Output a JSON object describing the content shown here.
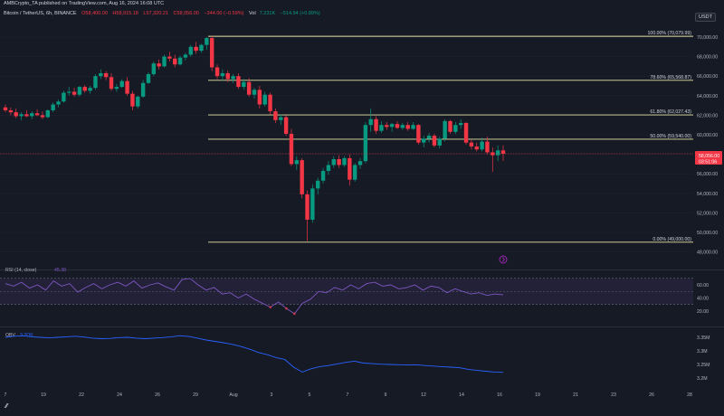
{
  "header": {
    "published": "AMBCrypto_TA published on TradingView.com, Aug 16, 2024 16:08 UTC",
    "symbol": "Bitcoin / TetherUS, 6h, BINANCE",
    "open": "O58,400.00",
    "high": "H58,915.18",
    "low": "L57,320.21",
    "close": "C58,056.00",
    "change": "−344.00 (−0.59%)",
    "volume_label": "Vol",
    "volume": "7.231K",
    "volume_change": "−514.94 (+0.89%)",
    "currency": "USDT"
  },
  "price_axis": {
    "ticks": [
      "70,000.00",
      "68,000.00",
      "66,000.00",
      "64,000.00",
      "62,000.00",
      "60,000.00",
      "58,000.00",
      "56,000.00",
      "54,000.00",
      "52,000.00",
      "50,000.00",
      "48,000.00"
    ],
    "last_price": "58,056.00",
    "countdown": "03:51:06"
  },
  "fib_levels": [
    {
      "label": "100.00% (70,079.99)",
      "price": 70079.99
    },
    {
      "label": "78.60% (65,568.87)",
      "price": 65568.87
    },
    {
      "label": "61.80% (62,027.43)",
      "price": 62027.43
    },
    {
      "label": "50.00% (59,540.00)",
      "price": 59540.0
    },
    {
      "label": "0.00% (49,000.00)",
      "price": 49000.0
    }
  ],
  "rsi": {
    "label": "RSI (14, close)",
    "value": "45.38",
    "ticks": [
      "60.00",
      "40.00",
      "20.00"
    ],
    "upper": 70,
    "lower": 30,
    "values": [
      62,
      58,
      64,
      55,
      60,
      52,
      66,
      58,
      62,
      49,
      56,
      62,
      54,
      60,
      64,
      58,
      66,
      55,
      60,
      63,
      57,
      52,
      68,
      70,
      60,
      52,
      56,
      46,
      48,
      40,
      46,
      38,
      32,
      26,
      34,
      24,
      16,
      32,
      38,
      50,
      48,
      56,
      52,
      60,
      54,
      62,
      64,
      58,
      60,
      54,
      56,
      60,
      52,
      58,
      56,
      48,
      54,
      50,
      46,
      48,
      44,
      46,
      45
    ]
  },
  "obv": {
    "label": "OBV",
    "value": "3.2OK",
    "ticks": [
      "3.35M",
      "3.3M",
      "3.25M",
      "3.2M"
    ],
    "values": [
      3.35,
      3.354,
      3.356,
      3.352,
      3.35,
      3.348,
      3.35,
      3.352,
      3.354,
      3.351,
      3.347,
      3.345,
      3.346,
      3.349,
      3.35,
      3.347,
      3.345,
      3.347,
      3.349,
      3.352,
      3.356,
      3.353,
      3.347,
      3.34,
      3.335,
      3.33,
      3.324,
      3.316,
      3.306,
      3.294,
      3.286,
      3.275,
      3.268,
      3.24,
      3.222,
      3.234,
      3.242,
      3.246,
      3.252,
      3.258,
      3.262,
      3.255,
      3.253,
      3.251,
      3.25,
      3.249,
      3.248,
      3.249,
      3.246,
      3.244,
      3.242,
      3.24,
      3.238,
      3.232,
      3.228,
      3.225,
      3.222,
      3.221
    ]
  },
  "time_axis": {
    "labels": [
      "7",
      "19",
      "22",
      "24",
      "26",
      "29",
      "Aug",
      "3",
      "5",
      "7",
      "9",
      "12",
      "14",
      "16",
      "19",
      "21",
      "23",
      "26",
      "28"
    ]
  },
  "chart_data": {
    "type": "candlestick",
    "title": "Bitcoin / TetherUS, 6h, BINANCE",
    "ylim": [
      47500,
      70900
    ],
    "candles": [
      [
        62800,
        63100,
        62300,
        62500
      ],
      [
        62500,
        62800,
        62000,
        62300
      ],
      [
        62300,
        62700,
        61700,
        61900
      ],
      [
        61900,
        62300,
        61500,
        62100
      ],
      [
        62100,
        62500,
        61800,
        61900
      ],
      [
        61900,
        62400,
        61600,
        62200
      ],
      [
        62200,
        62600,
        61900,
        62000
      ],
      [
        62000,
        62400,
        61600,
        61800
      ],
      [
        61800,
        62600,
        61700,
        62500
      ],
      [
        62500,
        63300,
        62300,
        63100
      ],
      [
        63100,
        63600,
        62800,
        63400
      ],
      [
        63400,
        64500,
        63300,
        64300
      ],
      [
        64300,
        64900,
        64000,
        64400
      ],
      [
        64400,
        64800,
        63900,
        64100
      ],
      [
        64100,
        65000,
        63900,
        64900
      ],
      [
        64900,
        65100,
        64300,
        64500
      ],
      [
        64500,
        65000,
        64200,
        64800
      ],
      [
        64800,
        66200,
        64600,
        66000
      ],
      [
        66000,
        66700,
        65700,
        66300
      ],
      [
        66300,
        66500,
        65600,
        65900
      ],
      [
        65900,
        66300,
        64500,
        64700
      ],
      [
        64700,
        65200,
        64400,
        64900
      ],
      [
        64900,
        65700,
        64800,
        65500
      ],
      [
        65500,
        65900,
        64000,
        64200
      ],
      [
        64200,
        64500,
        62500,
        62900
      ],
      [
        62900,
        64000,
        62700,
        63900
      ],
      [
        63900,
        65600,
        63800,
        65300
      ],
      [
        65300,
        66400,
        65200,
        66200
      ],
      [
        66200,
        67500,
        66000,
        67300
      ],
      [
        67300,
        67700,
        66700,
        67000
      ],
      [
        67000,
        68200,
        66900,
        68000
      ],
      [
        68000,
        68500,
        67500,
        67800
      ],
      [
        67800,
        68200,
        66900,
        67200
      ],
      [
        67200,
        68100,
        67100,
        67900
      ],
      [
        67900,
        68400,
        67600,
        68200
      ],
      [
        68200,
        69200,
        68000,
        69000
      ],
      [
        69000,
        69500,
        68300,
        68600
      ],
      [
        68600,
        69300,
        68400,
        69200
      ],
      [
        69200,
        70000,
        68700,
        69900
      ],
      [
        69900,
        70080,
        66500,
        66900
      ],
      [
        66900,
        67200,
        65700,
        66000
      ],
      [
        66000,
        66700,
        65500,
        66300
      ],
      [
        66300,
        66600,
        65400,
        65700
      ],
      [
        65700,
        66200,
        65300,
        66000
      ],
      [
        66000,
        66300,
        64700,
        64900
      ],
      [
        64900,
        65700,
        64600,
        65400
      ],
      [
        65400,
        65800,
        63900,
        64100
      ],
      [
        64100,
        64800,
        63700,
        64600
      ],
      [
        64600,
        65000,
        62700,
        63100
      ],
      [
        63100,
        64400,
        62900,
        64100
      ],
      [
        64100,
        64300,
        62100,
        62400
      ],
      [
        62400,
        62700,
        61200,
        61500
      ],
      [
        61500,
        62100,
        61000,
        61800
      ],
      [
        61800,
        62000,
        59900,
        60100
      ],
      [
        60100,
        60600,
        56800,
        57000
      ],
      [
        57000,
        57800,
        56400,
        57400
      ],
      [
        57400,
        57600,
        53500,
        53900
      ],
      [
        53900,
        54300,
        49100,
        51300
      ],
      [
        51300,
        54900,
        51000,
        54500
      ],
      [
        54500,
        55600,
        53900,
        55300
      ],
      [
        55300,
        56600,
        55000,
        56300
      ],
      [
        56300,
        57300,
        55900,
        56900
      ],
      [
        56900,
        57800,
        56600,
        57500
      ],
      [
        57500,
        57900,
        56600,
        56900
      ],
      [
        56900,
        57800,
        56700,
        57600
      ],
      [
        57600,
        58000,
        54800,
        55400
      ],
      [
        55400,
        57100,
        55200,
        56900
      ],
      [
        56900,
        57600,
        56500,
        57300
      ],
      [
        57300,
        61300,
        57100,
        61000
      ],
      [
        61000,
        62700,
        60300,
        61600
      ],
      [
        61600,
        61900,
        60100,
        60400
      ],
      [
        60400,
        61400,
        60200,
        61000
      ],
      [
        61000,
        61300,
        60500,
        60800
      ],
      [
        60800,
        61200,
        60300,
        61100
      ],
      [
        61100,
        61400,
        60600,
        60700
      ],
      [
        60700,
        61200,
        60500,
        61000
      ],
      [
        61000,
        61300,
        60400,
        60600
      ],
      [
        60600,
        61300,
        60500,
        61000
      ],
      [
        61000,
        61100,
        59000,
        59200
      ],
      [
        59200,
        59900,
        58700,
        59600
      ],
      [
        59600,
        60200,
        59200,
        59900
      ],
      [
        59900,
        60100,
        58700,
        58900
      ],
      [
        58900,
        59800,
        58600,
        59600
      ],
      [
        59600,
        61600,
        59300,
        61400
      ],
      [
        61400,
        61500,
        60100,
        60300
      ],
      [
        60300,
        61300,
        60100,
        61000
      ],
      [
        61000,
        61600,
        60600,
        61200
      ],
      [
        61200,
        61300,
        59000,
        59200
      ],
      [
        59200,
        59500,
        58500,
        58800
      ],
      [
        58800,
        59200,
        58300,
        58500
      ],
      [
        58500,
        59700,
        58300,
        59300
      ],
      [
        59300,
        59800,
        58000,
        58200
      ],
      [
        58200,
        58700,
        56200,
        57900
      ],
      [
        57900,
        58900,
        57300,
        58400
      ],
      [
        58400,
        58915,
        57320,
        58056
      ]
    ]
  }
}
